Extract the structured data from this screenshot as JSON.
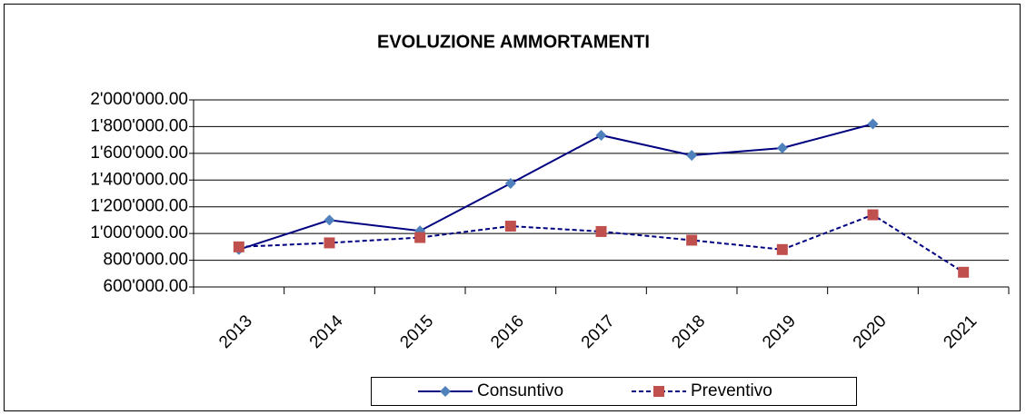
{
  "chart_data": {
    "type": "line",
    "title": "EVOLUZIONE AMMORTAMENTI",
    "categories": [
      "2013",
      "2014",
      "2015",
      "2016",
      "2017",
      "2018",
      "2019",
      "2020",
      "2021"
    ],
    "series": [
      {
        "name": "Consuntivo",
        "color": "#000080",
        "marker_color": "#4f81bd",
        "marker": "diamond",
        "dash": false,
        "values": [
          880000,
          1100000,
          1020000,
          1375000,
          1735000,
          1585000,
          1640000,
          1820000,
          null
        ]
      },
      {
        "name": "Preventivo",
        "color": "#000080",
        "marker_color": "#c0504d",
        "marker": "square",
        "dash": true,
        "values": [
          900000,
          930000,
          970000,
          1055000,
          1015000,
          950000,
          880000,
          1140000,
          710000
        ]
      }
    ],
    "ylim": [
      600000,
      2000000
    ],
    "yticks": [
      {
        "value": 600000,
        "label": "600'000.00"
      },
      {
        "value": 800000,
        "label": "800'000.00"
      },
      {
        "value": 1000000,
        "label": "1'000'000.00"
      },
      {
        "value": 1200000,
        "label": "1'200'000.00"
      },
      {
        "value": 1400000,
        "label": "1'400'000.00"
      },
      {
        "value": 1600000,
        "label": "1'600'000.00"
      },
      {
        "value": 1800000,
        "label": "1'800'000.00"
      },
      {
        "value": 2000000,
        "label": "2'000'000.00"
      }
    ],
    "grid": true,
    "legend": "bottom"
  }
}
